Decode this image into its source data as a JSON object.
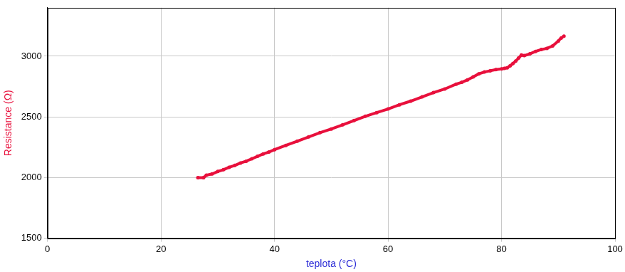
{
  "chart_data": {
    "type": "scatter",
    "x_label": "teplota (°C)",
    "y_label": "Resistance (Ω)",
    "color": "#e8103c",
    "marker": "circle",
    "line_style": "solid",
    "grid": true,
    "xlim": [
      0,
      100
    ],
    "xticks": [
      0,
      20,
      40,
      60,
      80,
      100
    ],
    "ylim": [
      1500,
      3400
    ],
    "yticks": [
      1500,
      2000,
      2500,
      3000
    ],
    "x": [
      26.5,
      27.5,
      28,
      29,
      30,
      31,
      32,
      33,
      34,
      35,
      36,
      37,
      38,
      39,
      40,
      42,
      44,
      46,
      48,
      50,
      52,
      54,
      56,
      58,
      60,
      62,
      64,
      66,
      68,
      70,
      72,
      73,
      74,
      75,
      76,
      77,
      78,
      79,
      80,
      80.5,
      81,
      81.5,
      82,
      82.5,
      83,
      83.5,
      84,
      85,
      86,
      87,
      88,
      89,
      90,
      90.5,
      91
    ],
    "values": [
      2000,
      2000,
      2020,
      2030,
      2050,
      2065,
      2085,
      2100,
      2120,
      2135,
      2155,
      2175,
      2195,
      2210,
      2230,
      2265,
      2300,
      2335,
      2370,
      2400,
      2435,
      2470,
      2505,
      2535,
      2565,
      2600,
      2630,
      2665,
      2700,
      2730,
      2770,
      2785,
      2805,
      2830,
      2855,
      2870,
      2880,
      2890,
      2895,
      2900,
      2905,
      2920,
      2940,
      2960,
      2985,
      3010,
      3005,
      3020,
      3040,
      3055,
      3065,
      3085,
      3125,
      3150,
      3165
    ]
  }
}
